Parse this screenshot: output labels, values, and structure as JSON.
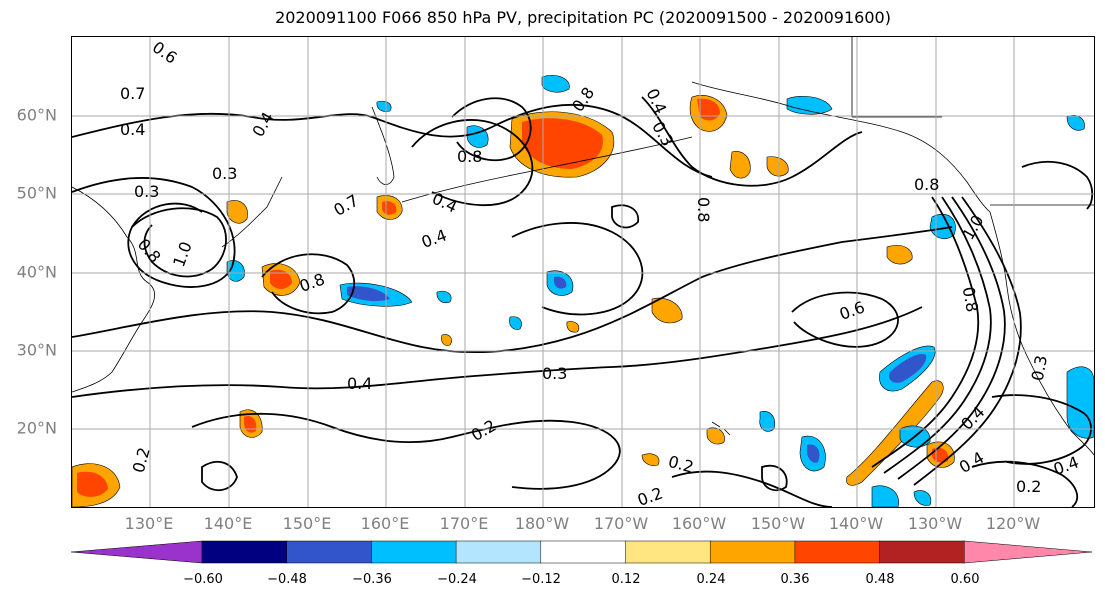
{
  "title": "2020091100 F066 850 hPa PV, precipitation PC (2020091500 - 2020091600)",
  "map": {
    "lat_ticks": [
      "60°N",
      "50°N",
      "40°N",
      "30°N",
      "20°N"
    ],
    "lon_ticks": [
      "130°E",
      "140°E",
      "150°E",
      "160°E",
      "170°E",
      "180°W",
      "170°W",
      "160°W",
      "150°W",
      "140°W",
      "130°W",
      "120°W"
    ]
  },
  "contour_labels": [
    {
      "text": "0.6"
    },
    {
      "text": "0.7"
    },
    {
      "text": "0.4"
    },
    {
      "text": "0.3"
    },
    {
      "text": "0.3"
    },
    {
      "text": "0.8"
    },
    {
      "text": "1.0"
    },
    {
      "text": "0.8"
    },
    {
      "text": "0.4"
    },
    {
      "text": "0.7"
    },
    {
      "text": "0.4"
    },
    {
      "text": "0.8"
    },
    {
      "text": "0.8"
    },
    {
      "text": "0.4"
    },
    {
      "text": "0.8"
    },
    {
      "text": "0.4"
    },
    {
      "text": "0.3"
    },
    {
      "text": "0.8"
    },
    {
      "text": "0.6"
    },
    {
      "text": "0.4"
    },
    {
      "text": "0.3"
    },
    {
      "text": "0.2"
    },
    {
      "text": "0.2"
    },
    {
      "text": "0.2"
    },
    {
      "text": "0.2"
    },
    {
      "text": "0.4"
    },
    {
      "text": "0.4"
    },
    {
      "text": "0.2"
    },
    {
      "text": "0.4"
    },
    {
      "text": "1.0"
    },
    {
      "text": "0.8"
    },
    {
      "text": "0.3"
    }
  ],
  "colorbar": {
    "ticks": [
      "−0.60",
      "−0.48",
      "−0.36",
      "−0.24",
      "−0.12",
      "0.12",
      "0.24",
      "0.36",
      "0.48",
      "0.60"
    ],
    "colors": [
      "#9933cc",
      "#000080",
      "#3355cc",
      "#00bfff",
      "#b3e5ff",
      "#ffffff",
      "#ffe680",
      "#ffa500",
      "#ff4500",
      "#b22222",
      "#ff88aa"
    ]
  }
}
